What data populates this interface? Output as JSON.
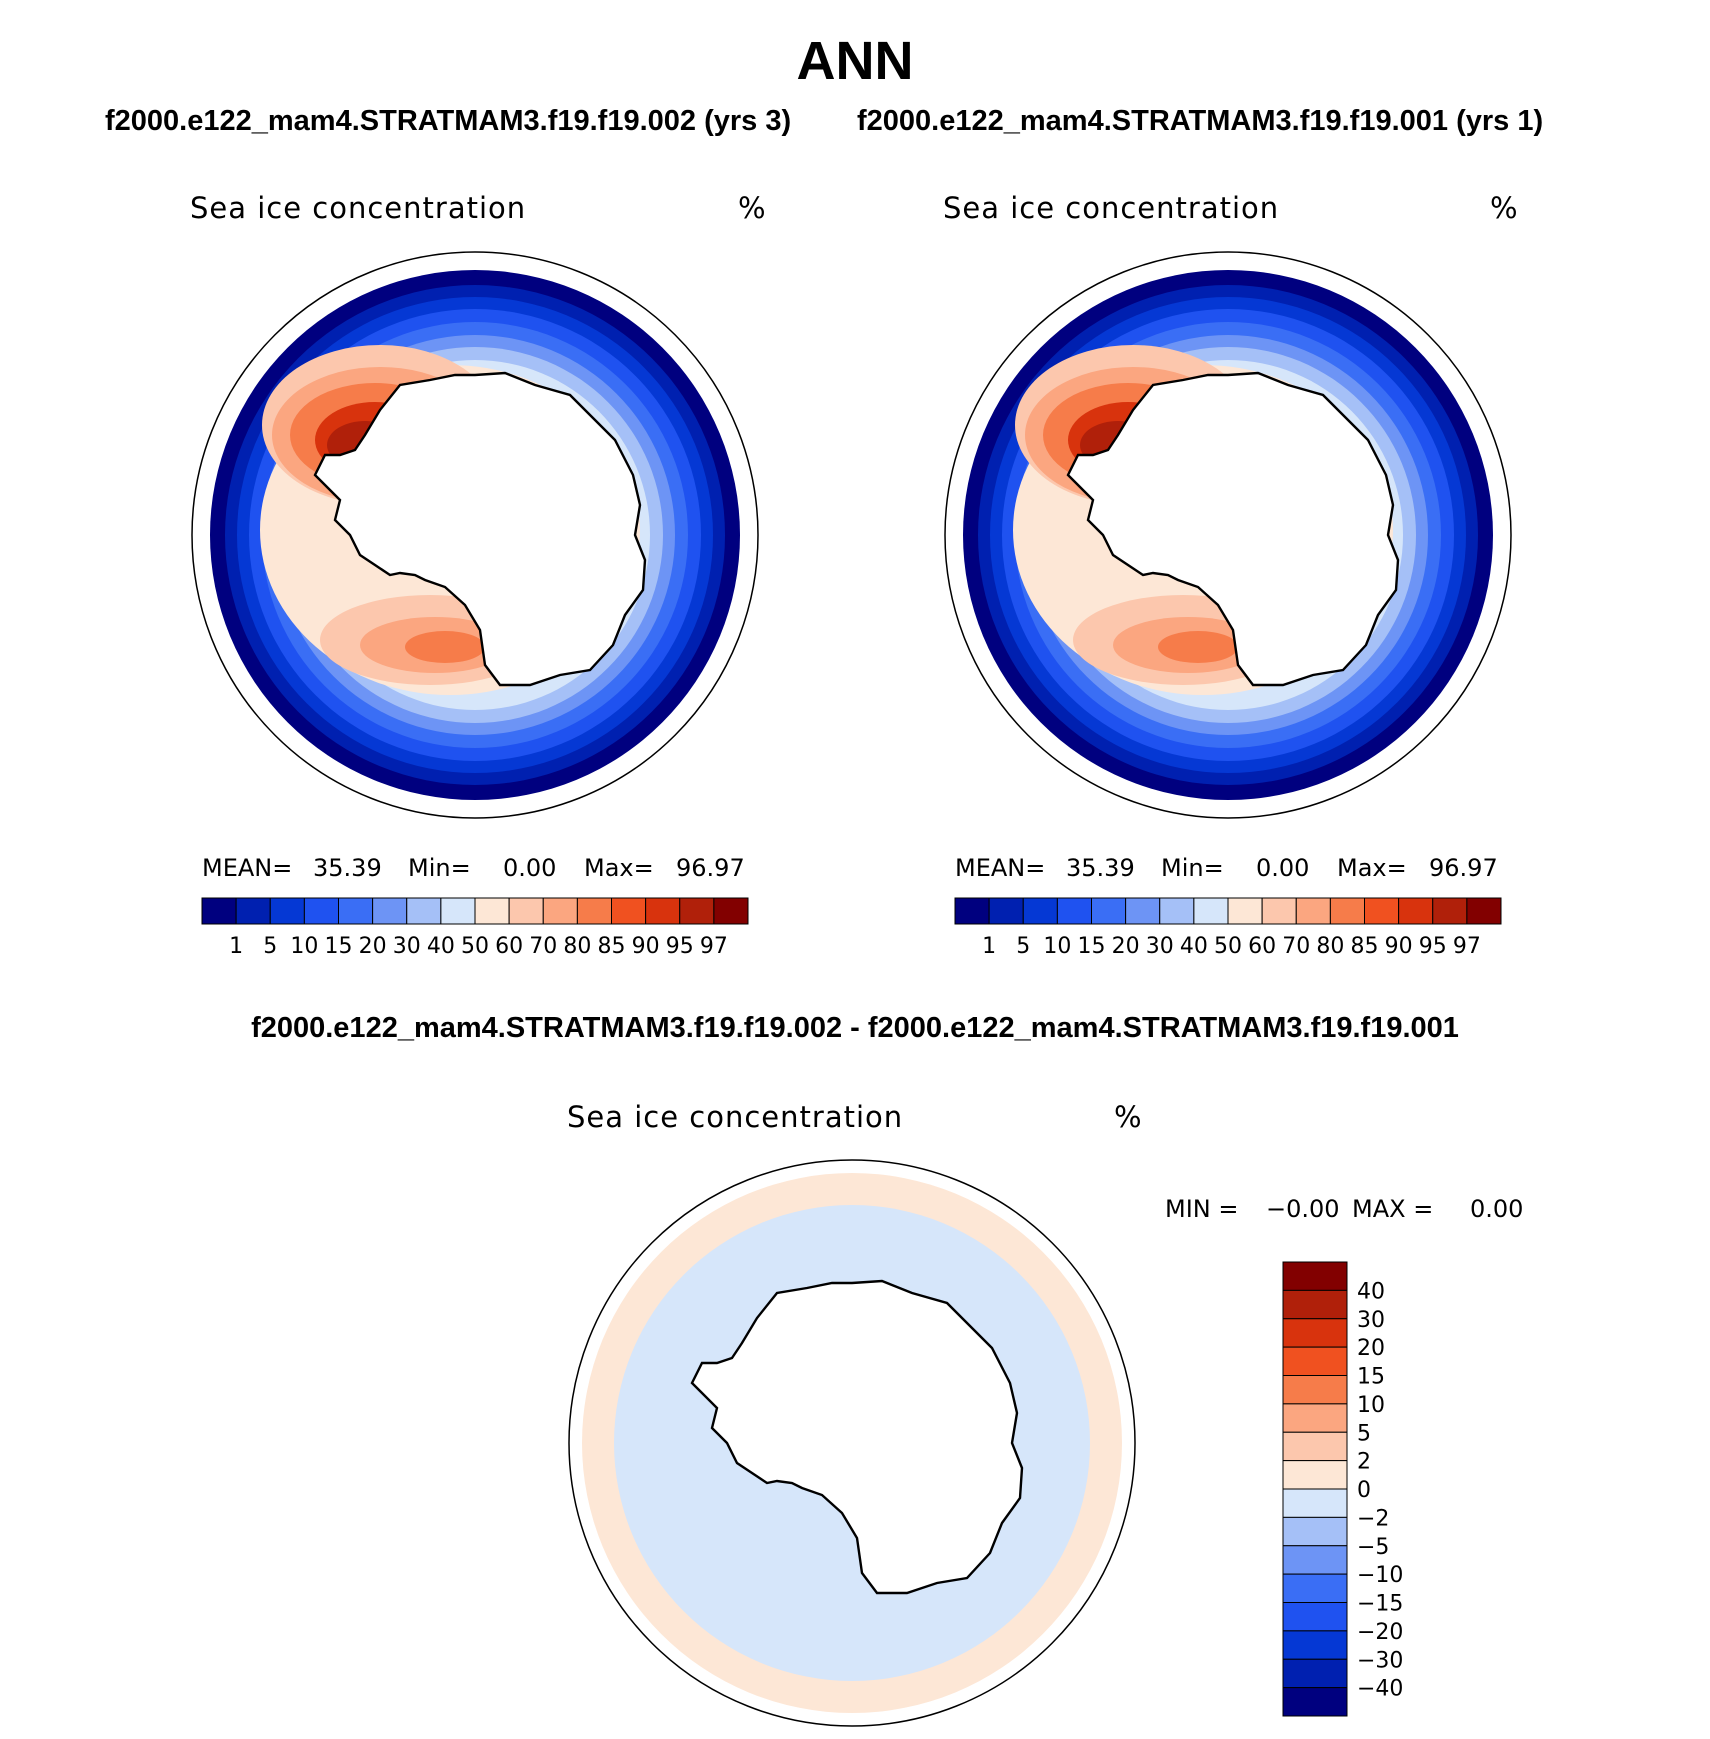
{
  "title": "ANN",
  "panels": [
    {
      "case": "f2000.e122_mam4.STRATMAM3.f19.f19.002 (yrs 3)",
      "variable": "Sea ice concentration",
      "units": "%",
      "stats": {
        "mean_label": "MEAN=",
        "mean": "35.39",
        "min_label": "Min=",
        "min": "0.00",
        "max_label": "Max=",
        "max": "96.97"
      }
    },
    {
      "case": "f2000.e122_mam4.STRATMAM3.f19.f19.001 (yrs 1)",
      "variable": "Sea ice concentration",
      "units": "%",
      "stats": {
        "mean_label": "MEAN=",
        "mean": "35.39",
        "min_label": "Min=",
        "min": "0.00",
        "max_label": "Max=",
        "max": "96.97"
      }
    }
  ],
  "diff": {
    "title": "f2000.e122_mam4.STRATMAM3.f19.f19.002 - f2000.e122_mam4.STRATMAM3.f19.f19.001",
    "variable": "Sea ice concentration",
    "units": "%",
    "min_label": "MIN =",
    "min": "−0.00",
    "max_label": "MAX =",
    "max": "0.00"
  },
  "colorbar_abs": {
    "labels": [
      "1",
      "5",
      "10",
      "15",
      "20",
      "30",
      "40",
      "50",
      "60",
      "70",
      "80",
      "85",
      "90",
      "95",
      "97"
    ],
    "colors": [
      "#00007f",
      "#0020b0",
      "#0538d4",
      "#1f52f0",
      "#3a6ef5",
      "#6d94f5",
      "#a5c0f7",
      "#d6e6fa",
      "#fde7d6",
      "#fcc7ad",
      "#fba680",
      "#f67c4a",
      "#f05120",
      "#d8330d",
      "#b0200a",
      "#820000"
    ]
  },
  "colorbar_diff": {
    "labels": [
      "40",
      "30",
      "20",
      "15",
      "10",
      "5",
      "2",
      "0",
      "−2",
      "−5",
      "−10",
      "−15",
      "−20",
      "−30",
      "−40"
    ],
    "colors": [
      "#820000",
      "#b0200a",
      "#d8330d",
      "#f05120",
      "#f67c4a",
      "#fba680",
      "#fcc7ad",
      "#fde7d6",
      "#d6e6fa",
      "#a5c0f7",
      "#6d94f5",
      "#3a6ef5",
      "#1f52f0",
      "#0538d4",
      "#0020b0",
      "#00007f"
    ]
  }
}
